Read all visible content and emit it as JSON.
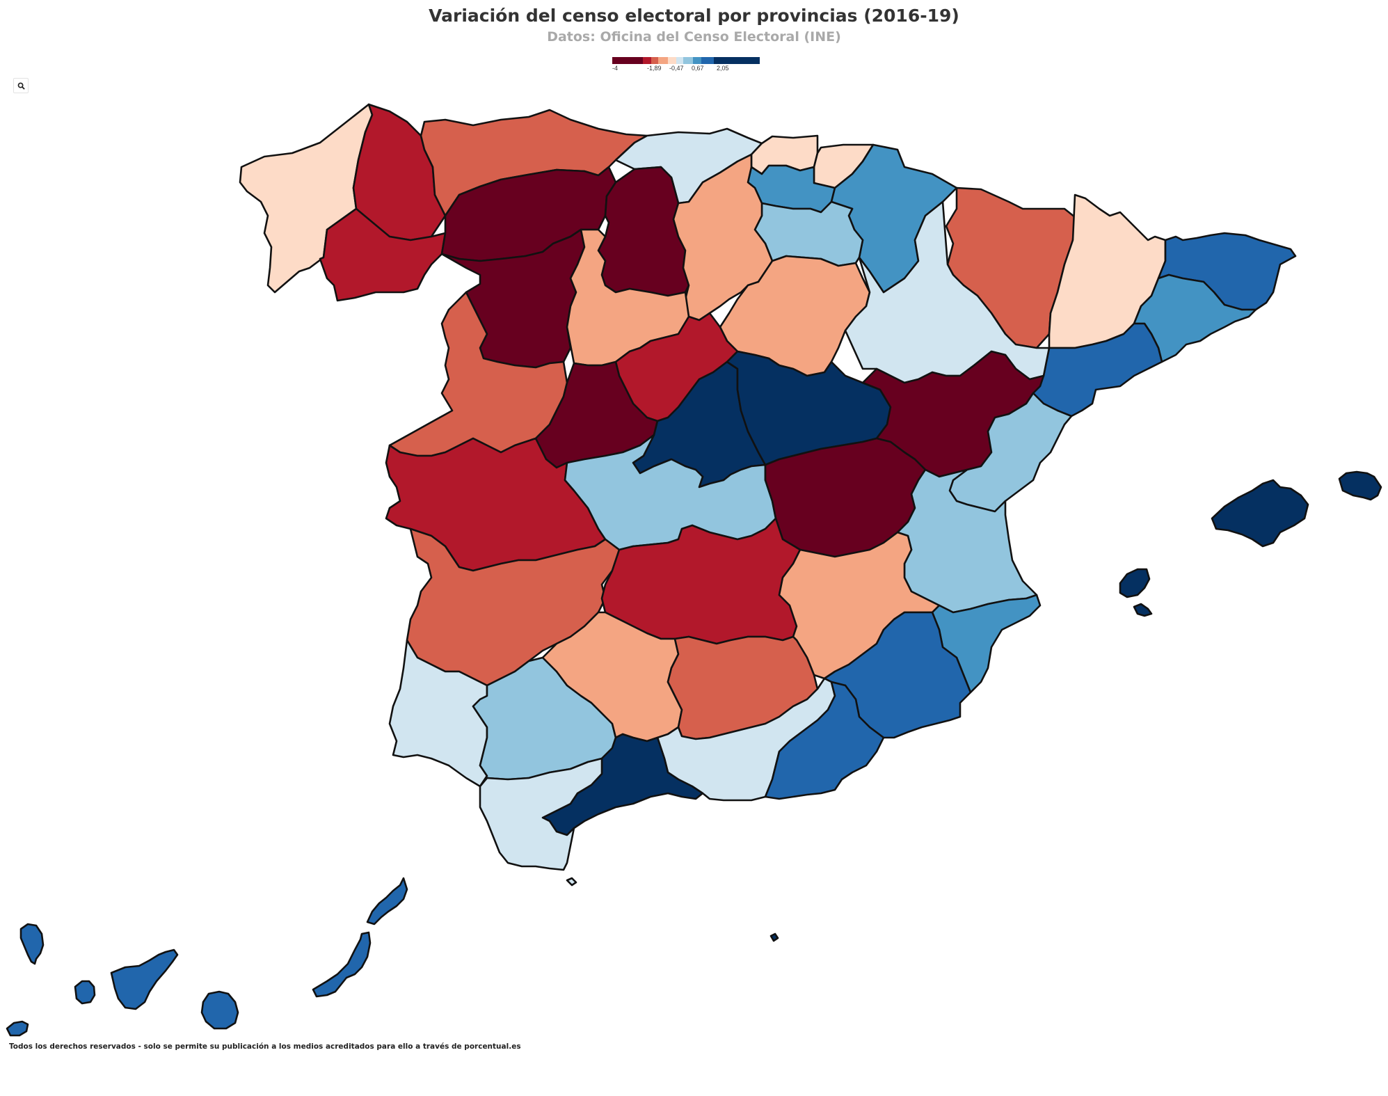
{
  "header": {
    "title": "Variación del censo electoral por provincias (2016-19)",
    "subtitle": "Datos: Oficina del Censo Electoral (INE)"
  },
  "legend": {
    "ticks": [
      "-4",
      "-1,89",
      "-0,47",
      "0,67",
      "2,05"
    ],
    "colors": [
      "#67001f",
      "#b2182b",
      "#d6604d",
      "#f4a582",
      "#fddbc7",
      "#d1e5f0",
      "#92c5de",
      "#4393c3",
      "#2166ac",
      "#053061"
    ]
  },
  "footer": {
    "credit": "Todos los derechos reservados - solo se permite su publicación a los medios acreditados para ello a través de porcentual.es"
  },
  "zoom": {
    "icon": "search-icon"
  },
  "provinces": [
    {
      "name": "A Coruña / Pontevedra",
      "bin": 4
    },
    {
      "name": "Lugo",
      "bin": 1
    },
    {
      "name": "Ourense",
      "bin": 1
    },
    {
      "name": "Asturias",
      "bin": 2
    },
    {
      "name": "Cantabria",
      "bin": 5
    },
    {
      "name": "Vizcaya",
      "bin": 4
    },
    {
      "name": "Guipúzcoa",
      "bin": 4
    },
    {
      "name": "Álava",
      "bin": 7
    },
    {
      "name": "Navarra",
      "bin": 7
    },
    {
      "name": "La Rioja",
      "bin": 6
    },
    {
      "name": "Huesca",
      "bin": 2
    },
    {
      "name": "Lleida",
      "bin": 4
    },
    {
      "name": "Girona",
      "bin": 8
    },
    {
      "name": "Barcelona",
      "bin": 7
    },
    {
      "name": "Tarragona",
      "bin": 8
    },
    {
      "name": "León",
      "bin": 0
    },
    {
      "name": "Palencia",
      "bin": 0
    },
    {
      "name": "Burgos",
      "bin": 3
    },
    {
      "name": "Zamora",
      "bin": 0
    },
    {
      "name": "Valladolid",
      "bin": 3
    },
    {
      "name": "Soria",
      "bin": 3
    },
    {
      "name": "Zaragoza",
      "bin": 5
    },
    {
      "name": "Salamanca",
      "bin": 2
    },
    {
      "name": "Segovia",
      "bin": 1
    },
    {
      "name": "Ávila",
      "bin": 0
    },
    {
      "name": "Madrid",
      "bin": 9
    },
    {
      "name": "Guadalajara",
      "bin": 9
    },
    {
      "name": "Teruel",
      "bin": 0
    },
    {
      "name": "Castellón",
      "bin": 6
    },
    {
      "name": "Cáceres",
      "bin": 1
    },
    {
      "name": "Toledo",
      "bin": 6
    },
    {
      "name": "Cuenca",
      "bin": 0
    },
    {
      "name": "Valencia",
      "bin": 6
    },
    {
      "name": "Badajoz",
      "bin": 2
    },
    {
      "name": "Ciudad Real",
      "bin": 1
    },
    {
      "name": "Albacete",
      "bin": 3
    },
    {
      "name": "Alicante",
      "bin": 7
    },
    {
      "name": "Murcia",
      "bin": 8
    },
    {
      "name": "Huelva",
      "bin": 5
    },
    {
      "name": "Sevilla",
      "bin": 6
    },
    {
      "name": "Córdoba",
      "bin": 3
    },
    {
      "name": "Jaén",
      "bin": 2
    },
    {
      "name": "Granada",
      "bin": 5
    },
    {
      "name": "Almería",
      "bin": 8
    },
    {
      "name": "Málaga",
      "bin": 9
    },
    {
      "name": "Cádiz",
      "bin": 5
    },
    {
      "name": "Mallorca",
      "bin": 9
    },
    {
      "name": "Menorca",
      "bin": 9
    },
    {
      "name": "Ibiza",
      "bin": 9
    },
    {
      "name": "Formentera",
      "bin": 9
    },
    {
      "name": "Ceuta",
      "bin": 5
    },
    {
      "name": "Melilla",
      "bin": 9
    },
    {
      "name": "La Palma",
      "bin": 8
    },
    {
      "name": "El Hierro",
      "bin": 8
    },
    {
      "name": "La Gomera",
      "bin": 8
    },
    {
      "name": "Tenerife",
      "bin": 8
    },
    {
      "name": "Gran Canaria",
      "bin": 8
    },
    {
      "name": "Fuerteventura",
      "bin": 8
    },
    {
      "name": "Lanzarote",
      "bin": 8
    }
  ]
}
